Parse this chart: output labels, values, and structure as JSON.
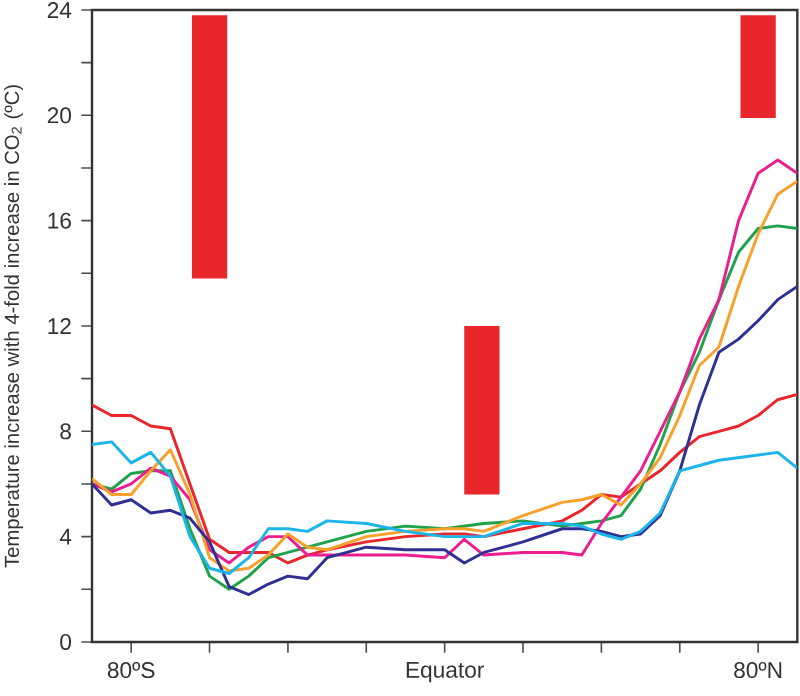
{
  "chart_data": {
    "type": "line",
    "ylabel": "Temperature increase with 4-fold increase in CO$_{2}$ (ºC)",
    "xlim": [
      -90,
      90
    ],
    "xticks": [
      {
        "value": -80,
        "label": "80ºS"
      },
      {
        "value": -60,
        "label": null
      },
      {
        "value": -40,
        "label": null
      },
      {
        "value": -20,
        "label": null
      },
      {
        "value": 0,
        "label": "Equator"
      },
      {
        "value": 20,
        "label": null
      },
      {
        "value": 40,
        "label": null
      },
      {
        "value": 60,
        "label": null
      },
      {
        "value": 80,
        "label": "80ºN"
      }
    ],
    "ylim": [
      0,
      24
    ],
    "yticks": [
      0,
      4,
      8,
      12,
      16,
      20,
      24
    ],
    "x": [
      -90,
      -85,
      -80,
      -75,
      -70,
      -65,
      -60,
      -55,
      -50,
      -45,
      -40,
      -35,
      -30,
      -20,
      -10,
      0,
      5,
      10,
      20,
      30,
      35,
      40,
      45,
      50,
      55,
      60,
      65,
      70,
      75,
      80,
      85,
      90
    ],
    "series": [
      {
        "color": "#e8262b",
        "values": [
          9.0,
          8.6,
          8.6,
          8.2,
          8.1,
          6.0,
          3.9,
          3.4,
          3.4,
          3.4,
          3.0,
          3.3,
          3.5,
          3.8,
          4.0,
          4.1,
          4.1,
          4.0,
          4.3,
          4.6,
          5.0,
          5.6,
          5.5,
          6.0,
          6.5,
          7.2,
          7.8,
          8.0,
          8.2,
          8.6,
          9.2,
          9.4
        ]
      },
      {
        "color": "#1fa24a",
        "values": [
          6.0,
          5.8,
          6.4,
          6.5,
          6.5,
          4.3,
          2.5,
          2.0,
          2.5,
          3.2,
          3.4,
          3.6,
          3.8,
          4.2,
          4.4,
          4.3,
          4.4,
          4.5,
          4.6,
          4.4,
          4.5,
          4.6,
          4.8,
          5.8,
          7.5,
          9.5,
          11.0,
          13.0,
          14.8,
          15.7,
          15.8,
          15.7
        ]
      },
      {
        "color": "#ec1e8f",
        "values": [
          6.0,
          5.7,
          6.0,
          6.6,
          6.3,
          5.4,
          3.5,
          3.0,
          3.6,
          4.0,
          4.0,
          3.3,
          3.3,
          3.3,
          3.3,
          3.2,
          3.9,
          3.3,
          3.4,
          3.4,
          3.3,
          4.5,
          5.5,
          6.5,
          8.0,
          9.5,
          11.5,
          13.0,
          16.0,
          17.8,
          18.3,
          17.8
        ]
      },
      {
        "color": "#f7a12c",
        "values": [
          6.2,
          5.6,
          5.6,
          6.5,
          7.3,
          5.6,
          3.2,
          2.7,
          2.8,
          3.3,
          4.1,
          3.6,
          3.5,
          4.0,
          4.2,
          4.3,
          4.3,
          4.2,
          4.8,
          5.3,
          5.4,
          5.6,
          5.2,
          6.0,
          7.0,
          8.6,
          10.5,
          11.2,
          13.5,
          15.5,
          17.0,
          17.5
        ]
      },
      {
        "color": "#2e3192",
        "values": [
          6.0,
          5.2,
          5.4,
          4.9,
          5.0,
          4.7,
          3.8,
          2.1,
          1.8,
          2.2,
          2.5,
          2.4,
          3.2,
          3.6,
          3.5,
          3.5,
          3.0,
          3.4,
          3.8,
          4.3,
          4.3,
          4.2,
          4.0,
          4.1,
          4.8,
          6.5,
          9.0,
          11.0,
          11.5,
          12.2,
          13.0,
          13.5
        ]
      },
      {
        "color": "#1bb5e9",
        "values": [
          7.5,
          7.6,
          6.8,
          7.2,
          6.3,
          4.0,
          2.8,
          2.6,
          3.2,
          4.3,
          4.3,
          4.2,
          4.6,
          4.5,
          4.2,
          4.0,
          4.0,
          4.0,
          4.5,
          4.5,
          4.4,
          4.1,
          3.9,
          4.2,
          4.9,
          6.5,
          6.7,
          6.9,
          7.0,
          7.1,
          7.2,
          6.6
        ]
      },
      {
        "type": "bar",
        "color": "#e8262b",
        "x": [
          -60,
          9.5,
          80
        ],
        "base": [
          13.8,
          5.6,
          19.9
        ],
        "values": [
          10.0,
          6.4,
          3.9
        ]
      }
    ]
  }
}
